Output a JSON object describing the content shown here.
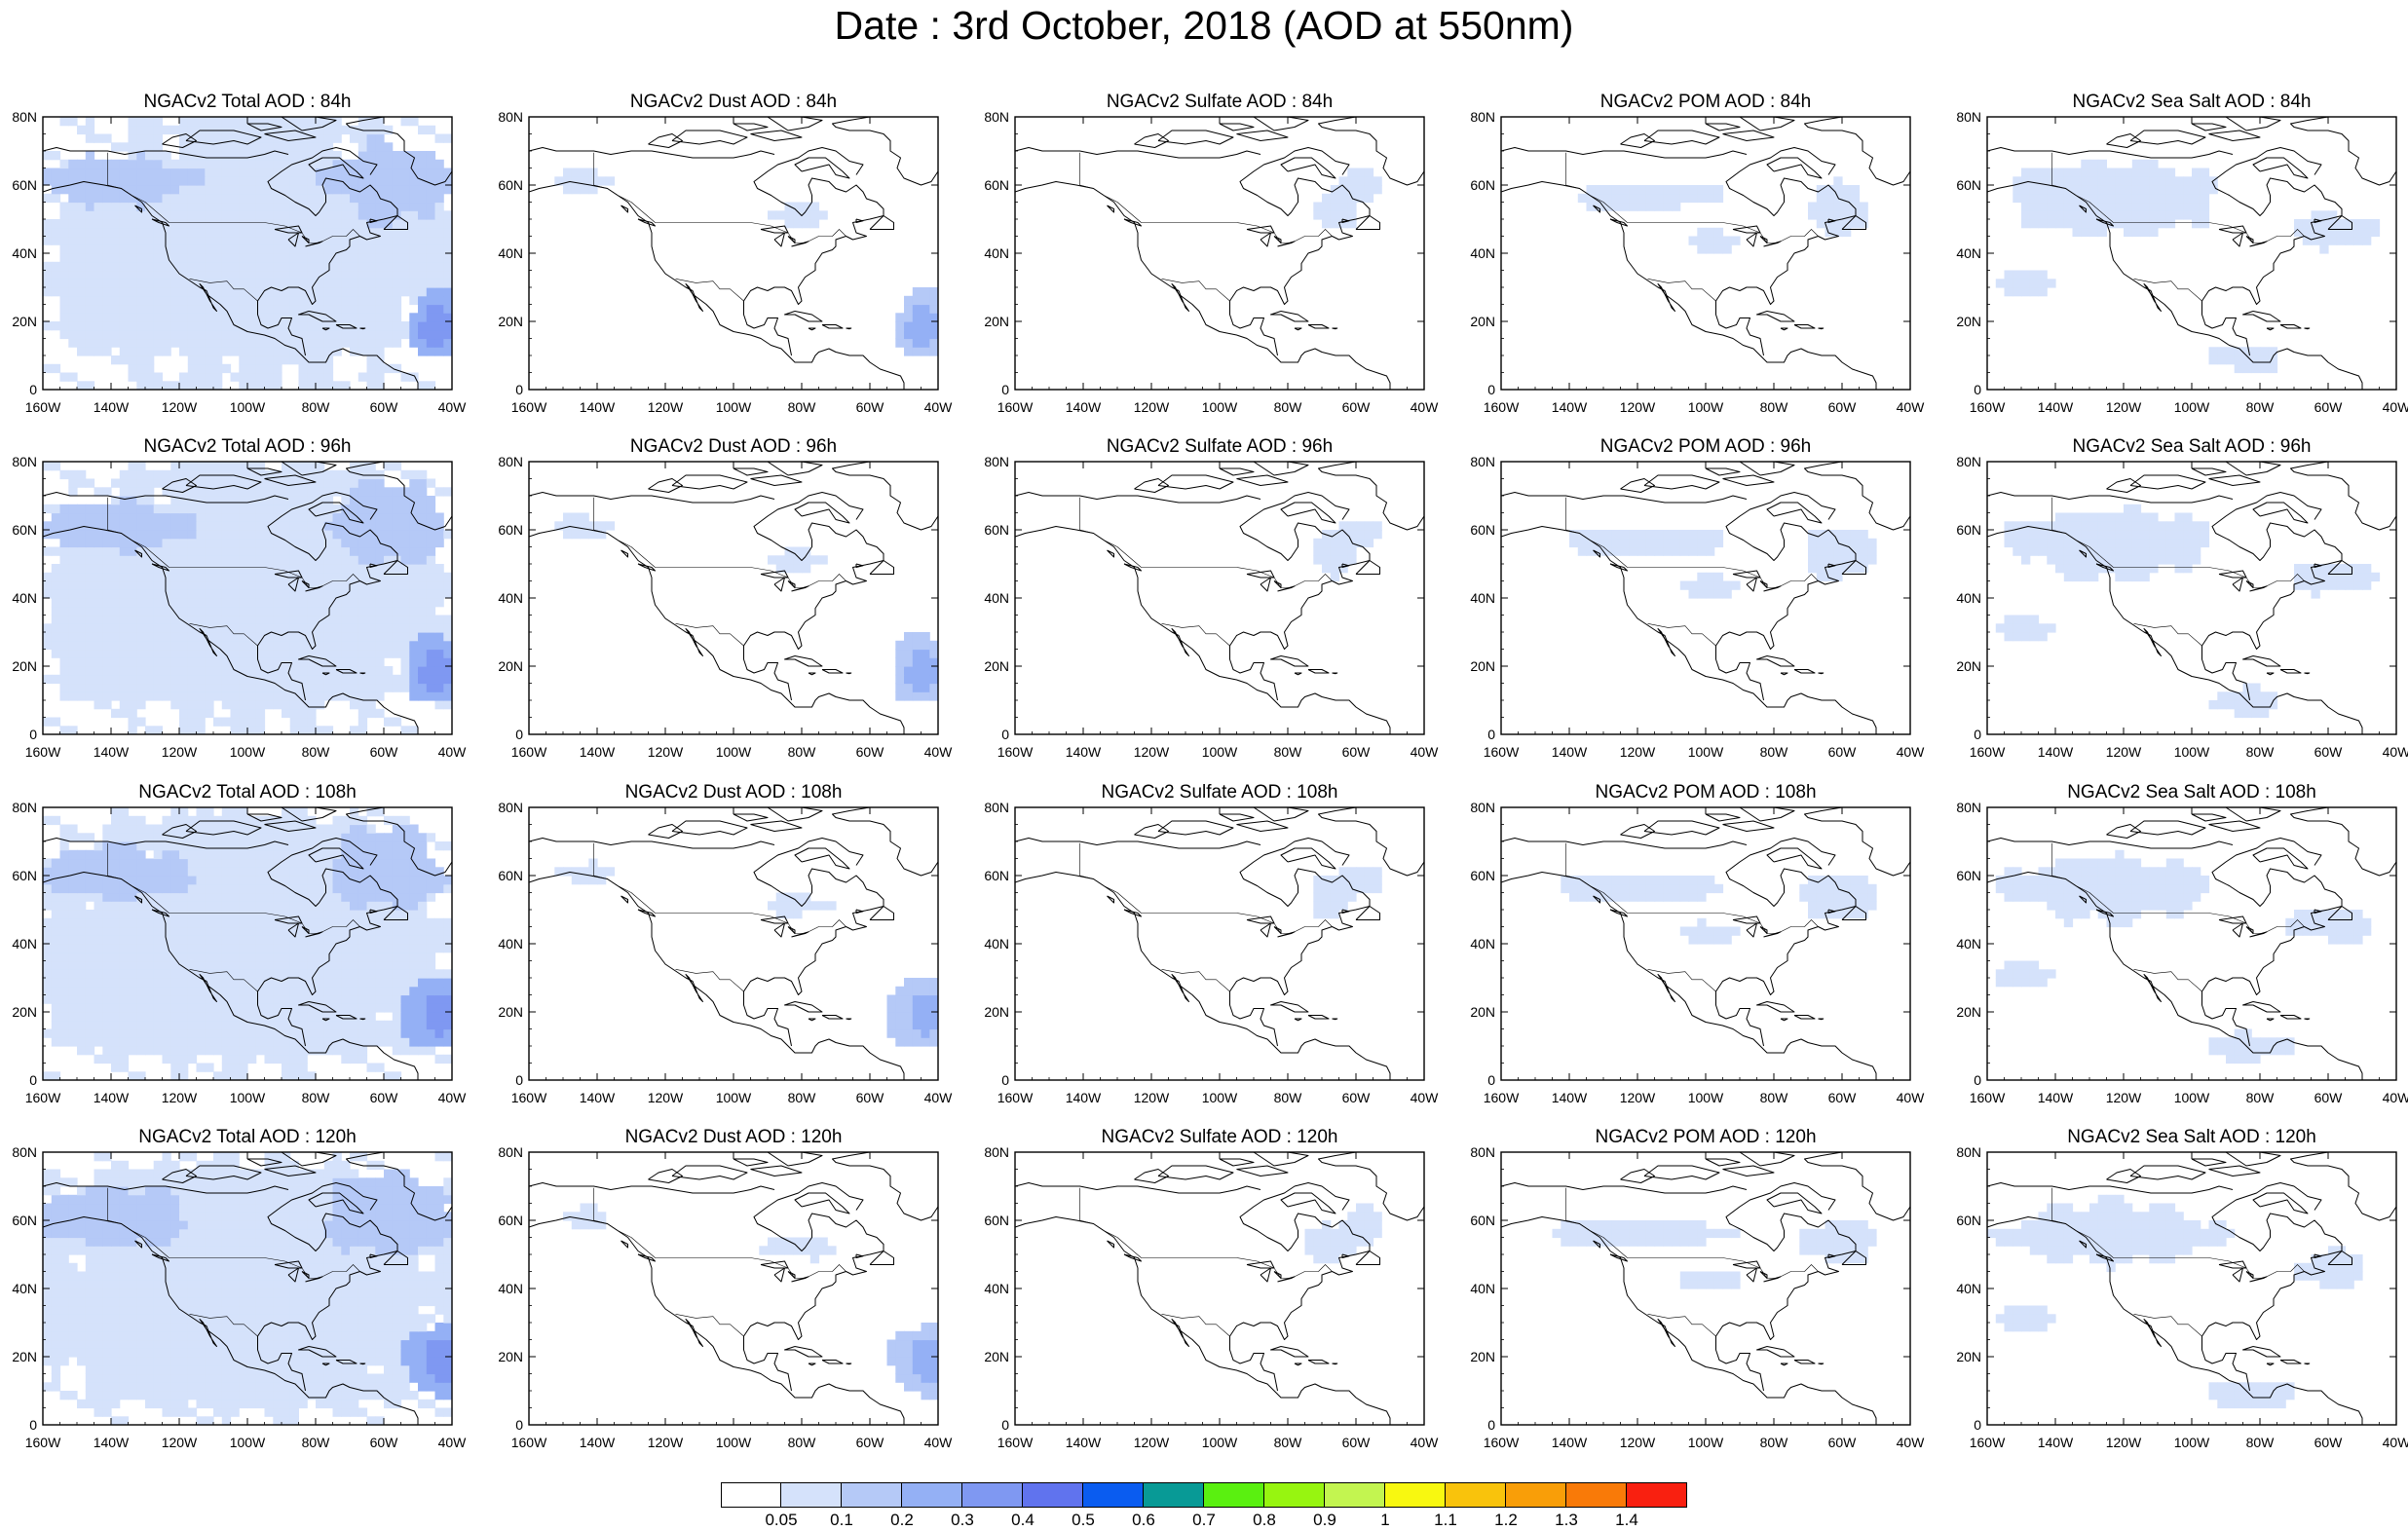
{
  "title": "Date : 3rd October, 2018 (AOD at 550nm)",
  "map_extent": {
    "lon": [
      -160,
      -40
    ],
    "lat": [
      0,
      80
    ]
  },
  "lon_ticks": [
    "160W",
    "140W",
    "120W",
    "100W",
    "80W",
    "60W",
    "40W"
  ],
  "lat_ticks": [
    "0",
    "20N",
    "40N",
    "60N",
    "80N"
  ],
  "panel_rows": [
    [
      "NGACv2 Total AOD : 84h",
      "NGACv2 Dust AOD : 84h",
      "NGACv2 Sulfate AOD : 84h",
      "NGACv2 POM AOD : 84h",
      "NGACv2 Sea Salt AOD : 84h"
    ],
    [
      "NGACv2 Total AOD : 96h",
      "NGACv2 Dust AOD : 96h",
      "NGACv2 Sulfate AOD : 96h",
      "NGACv2 POM AOD : 96h",
      "NGACv2 Sea Salt AOD : 96h"
    ],
    [
      "NGACv2 Total AOD : 108h",
      "NGACv2 Dust AOD : 108h",
      "NGACv2 Sulfate AOD : 108h",
      "NGACv2 POM AOD : 108h",
      "NGACv2 Sea Salt AOD : 108h"
    ],
    [
      "NGACv2 Total AOD : 120h",
      "NGACv2 Dust AOD : 120h",
      "NGACv2 Sulfate AOD : 120h",
      "NGACv2 POM AOD : 120h",
      "NGACv2 Sea Salt  AOD : 120h"
    ]
  ],
  "colorbar": {
    "labels": [
      "0.05",
      "0.1",
      "0.2",
      "0.3",
      "0.4",
      "0.5",
      "0.6",
      "0.7",
      "0.8",
      "0.9",
      "1",
      "1.1",
      "1.2",
      "1.3",
      "1.4"
    ],
    "colors": [
      "#ffffff",
      "#d5e2fb",
      "#b5c9f7",
      "#94b0f5",
      "#7f98f2",
      "#6073ee",
      "#0a5cf0",
      "#089a96",
      "#5af010",
      "#97f510",
      "#c3f550",
      "#f8f810",
      "#f9c30c",
      "#f99e08",
      "#f97a08",
      "#f92010"
    ]
  },
  "colors": {
    "aod_level_1": "#d5e2fb",
    "aod_level_2": "#b5c9f7",
    "aod_level_3": "#94b0f5",
    "aod_level_4": "#7f98f2",
    "coastline": "#000000",
    "frame": "#000000"
  }
}
